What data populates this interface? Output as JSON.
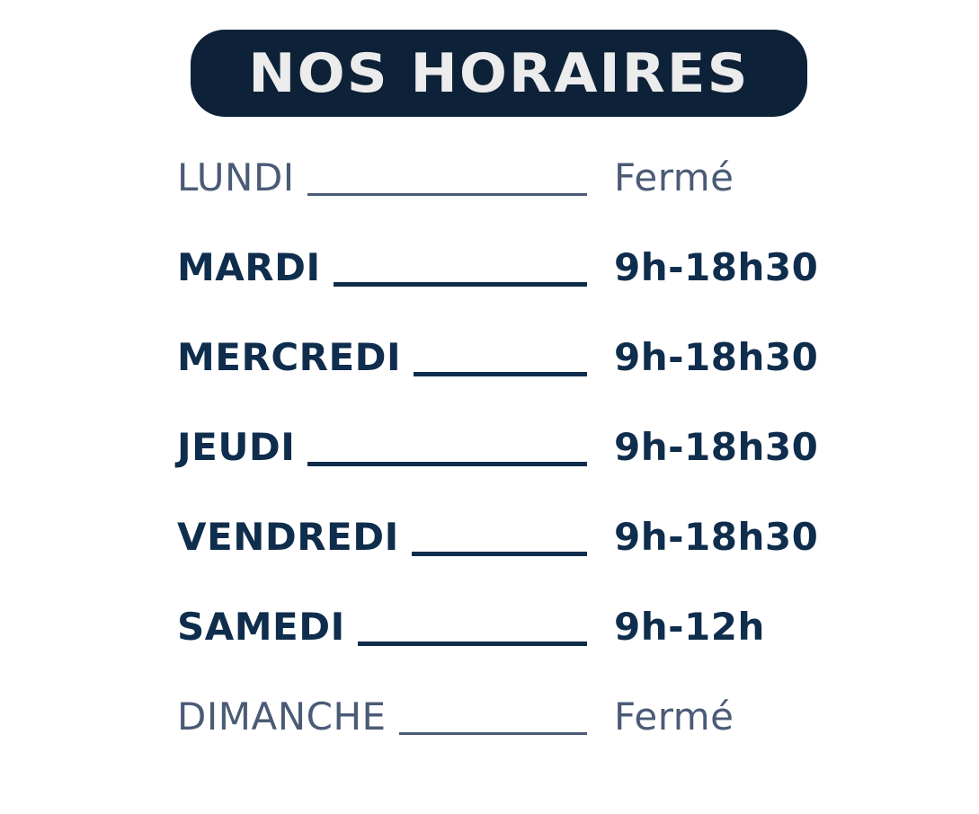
{
  "banner": {
    "title": "NOS HORAIRES"
  },
  "colors": {
    "banner_bg": "#0d2238",
    "title_text": "#ececec",
    "open_text": "#0f2d4c",
    "closed_text": "#4b5b76",
    "card_bg": "#ffffff"
  },
  "schedule": [
    {
      "day": "LUNDI",
      "hours": "Fermé",
      "closed": true
    },
    {
      "day": "MARDI",
      "hours": "9h-18h30",
      "closed": false
    },
    {
      "day": "MERCREDI",
      "hours": "9h-18h30",
      "closed": false
    },
    {
      "day": "JEUDI",
      "hours": "9h-18h30",
      "closed": false
    },
    {
      "day": "VENDREDI",
      "hours": "9h-18h30",
      "closed": false
    },
    {
      "day": "SAMEDI",
      "hours": "9h-12h",
      "closed": false
    },
    {
      "day": "DIMANCHE",
      "hours": "Fermé",
      "closed": true
    }
  ]
}
